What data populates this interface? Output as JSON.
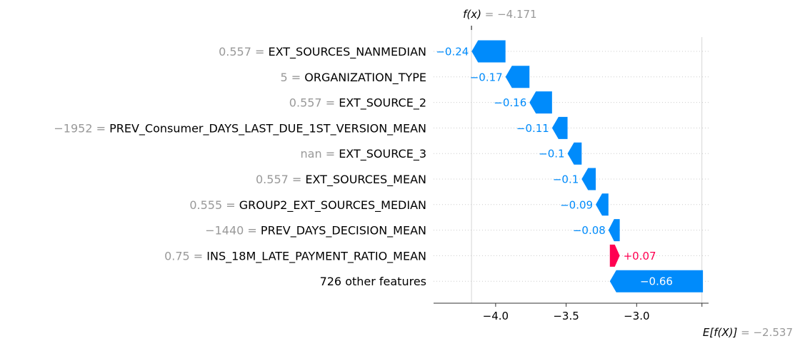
{
  "chart_data": {
    "type": "waterfall",
    "fx_label": "f(x) = −4.171",
    "fx_value": -4.171,
    "base_label": "E[f(X)] = −2.537",
    "base_value": -2.537,
    "xlim": [
      -4.44,
      -2.49
    ],
    "xticks": [
      -4.0,
      -3.5,
      -3.0
    ],
    "xtick_labels": [
      "−4.0",
      "−3.5",
      "−3.0"
    ],
    "colors": {
      "positive": "#ff0051",
      "negative": "#008bfb",
      "muted": "#999999",
      "grid": "#cccccc"
    },
    "features": [
      {
        "value_text": "0.557",
        "name": "EXT_SOURCES_NANMEDIAN",
        "shap": -0.24,
        "label": "−0.24",
        "start": -3.93
      },
      {
        "value_text": "5",
        "name": "ORGANIZATION_TYPE",
        "shap": -0.17,
        "label": "−0.17",
        "start": -3.76
      },
      {
        "value_text": "0.557",
        "name": "EXT_SOURCE_2",
        "shap": -0.16,
        "label": "−0.16",
        "start": -3.6
      },
      {
        "value_text": "−1952",
        "name": "PREV_Consumer_DAYS_LAST_DUE_1ST_VERSION_MEAN",
        "shap": -0.11,
        "label": "−0.11",
        "start": -3.49
      },
      {
        "value_text": "nan",
        "name": "EXT_SOURCE_3",
        "shap": -0.1,
        "label": "−0.1",
        "start": -3.39
      },
      {
        "value_text": "0.557",
        "name": "EXT_SOURCES_MEAN",
        "shap": -0.1,
        "label": "−0.1",
        "start": -3.29
      },
      {
        "value_text": "0.555",
        "name": "GROUP2_EXT_SOURCES_MEDIAN",
        "shap": -0.09,
        "label": "−0.09",
        "start": -3.2
      },
      {
        "value_text": "−1440",
        "name": "PREV_DAYS_DECISION_MEAN",
        "shap": -0.08,
        "label": "−0.08",
        "start": -3.12
      },
      {
        "value_text": "0.75",
        "name": "INS_18M_LATE_PAYMENT_RATIO_MEAN",
        "shap": 0.07,
        "label": "+0.07",
        "start": -3.19
      },
      {
        "value_text": "",
        "name": "726 other features",
        "shap": -0.66,
        "label": "−0.66",
        "start": -2.53
      }
    ]
  }
}
